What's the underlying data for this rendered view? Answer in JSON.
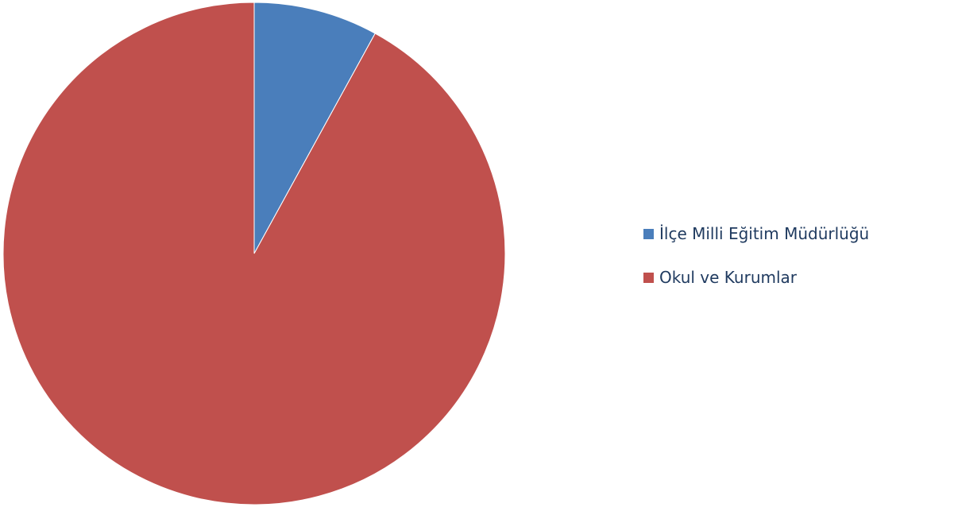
{
  "chart_data": {
    "type": "pie",
    "title": "",
    "categories": [
      "İlçe Milli Eğitim Müdürlüğü",
      "Okul ve Kurumlar"
    ],
    "values": [
      8,
      92
    ],
    "colors": [
      "#4a7ebb",
      "#c0504d"
    ],
    "start_angle": "12 o'clock",
    "direction": "clockwise",
    "legend_position": "right"
  }
}
